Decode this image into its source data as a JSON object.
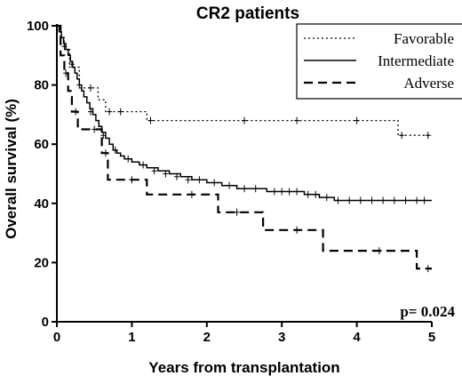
{
  "chart_data": {
    "type": "line",
    "title": "CR2 patients",
    "xlabel": "Years from transplantation",
    "ylabel": "Overall survival (%)",
    "xlim": [
      0,
      5
    ],
    "ylim": [
      0,
      100
    ],
    "xticks": [
      "0",
      "1",
      "2",
      "3",
      "4",
      "5"
    ],
    "yticks": [
      "0",
      "20",
      "40",
      "60",
      "80",
      "100"
    ],
    "grid": false,
    "legend_position": "top-right",
    "annotation": "p= 0.024",
    "series": [
      {
        "name": "Favorable",
        "style": "dotted",
        "steps": [
          [
            0,
            100
          ],
          [
            0.05,
            96
          ],
          [
            0.1,
            92
          ],
          [
            0.17,
            86
          ],
          [
            0.3,
            79
          ],
          [
            0.55,
            75
          ],
          [
            0.65,
            71
          ],
          [
            1.2,
            68
          ],
          [
            4.55,
            63
          ],
          [
            5,
            63
          ]
        ],
        "censored": [
          [
            0.45,
            79
          ],
          [
            0.7,
            71
          ],
          [
            0.85,
            71
          ],
          [
            1.25,
            68
          ],
          [
            2.5,
            68
          ],
          [
            3.2,
            68
          ],
          [
            4.0,
            68
          ],
          [
            4.6,
            63
          ],
          [
            4.95,
            63
          ]
        ]
      },
      {
        "name": "Intermediate",
        "style": "solid",
        "steps": [
          [
            0,
            100
          ],
          [
            0.03,
            98
          ],
          [
            0.06,
            96
          ],
          [
            0.09,
            94
          ],
          [
            0.12,
            92
          ],
          [
            0.15,
            90
          ],
          [
            0.18,
            88
          ],
          [
            0.21,
            86
          ],
          [
            0.24,
            84
          ],
          [
            0.27,
            82
          ],
          [
            0.3,
            80
          ],
          [
            0.33,
            78
          ],
          [
            0.36,
            76
          ],
          [
            0.4,
            74
          ],
          [
            0.44,
            72
          ],
          [
            0.48,
            70
          ],
          [
            0.52,
            68
          ],
          [
            0.56,
            66
          ],
          [
            0.6,
            64
          ],
          [
            0.65,
            62
          ],
          [
            0.7,
            60
          ],
          [
            0.75,
            58
          ],
          [
            0.8,
            57
          ],
          [
            0.85,
            56
          ],
          [
            0.9,
            55
          ],
          [
            1.0,
            54
          ],
          [
            1.1,
            53
          ],
          [
            1.2,
            52
          ],
          [
            1.35,
            51
          ],
          [
            1.5,
            50
          ],
          [
            1.65,
            49
          ],
          [
            1.8,
            48
          ],
          [
            2.0,
            47
          ],
          [
            2.2,
            46
          ],
          [
            2.4,
            45
          ],
          [
            2.8,
            44
          ],
          [
            3.3,
            43
          ],
          [
            3.5,
            42
          ],
          [
            3.7,
            41
          ],
          [
            5,
            41
          ]
        ],
        "censored": [
          [
            0.1,
            93
          ],
          [
            0.2,
            87
          ],
          [
            0.3,
            80
          ],
          [
            0.45,
            71
          ],
          [
            0.62,
            63
          ],
          [
            0.78,
            58
          ],
          [
            0.95,
            55
          ],
          [
            1.15,
            53
          ],
          [
            1.3,
            51
          ],
          [
            1.45,
            50
          ],
          [
            1.6,
            49
          ],
          [
            1.75,
            48
          ],
          [
            1.9,
            48
          ],
          [
            2.1,
            47
          ],
          [
            2.3,
            46
          ],
          [
            2.5,
            45
          ],
          [
            2.65,
            45
          ],
          [
            2.9,
            44
          ],
          [
            3.0,
            44
          ],
          [
            3.1,
            44
          ],
          [
            3.2,
            44
          ],
          [
            3.35,
            43
          ],
          [
            3.45,
            43
          ],
          [
            3.6,
            42
          ],
          [
            3.75,
            41
          ],
          [
            3.9,
            41
          ],
          [
            4.05,
            41
          ],
          [
            4.2,
            41
          ],
          [
            4.35,
            41
          ],
          [
            4.5,
            41
          ],
          [
            4.65,
            41
          ],
          [
            4.8,
            41
          ],
          [
            4.9,
            41
          ]
        ]
      },
      {
        "name": "Adverse",
        "style": "dashed",
        "steps": [
          [
            0,
            100
          ],
          [
            0.05,
            90
          ],
          [
            0.1,
            84
          ],
          [
            0.15,
            78
          ],
          [
            0.2,
            71
          ],
          [
            0.28,
            65
          ],
          [
            0.6,
            57
          ],
          [
            0.68,
            48
          ],
          [
            1.2,
            43
          ],
          [
            2.15,
            37
          ],
          [
            2.75,
            31
          ],
          [
            3.55,
            24
          ],
          [
            4.8,
            18
          ],
          [
            5,
            18
          ]
        ],
        "censored": [
          [
            0.12,
            84
          ],
          [
            0.25,
            71
          ],
          [
            0.5,
            65
          ],
          [
            0.65,
            57
          ],
          [
            1.0,
            48
          ],
          [
            1.8,
            43
          ],
          [
            2.4,
            37
          ],
          [
            3.2,
            31
          ],
          [
            4.3,
            24
          ],
          [
            4.95,
            18
          ]
        ]
      }
    ]
  }
}
